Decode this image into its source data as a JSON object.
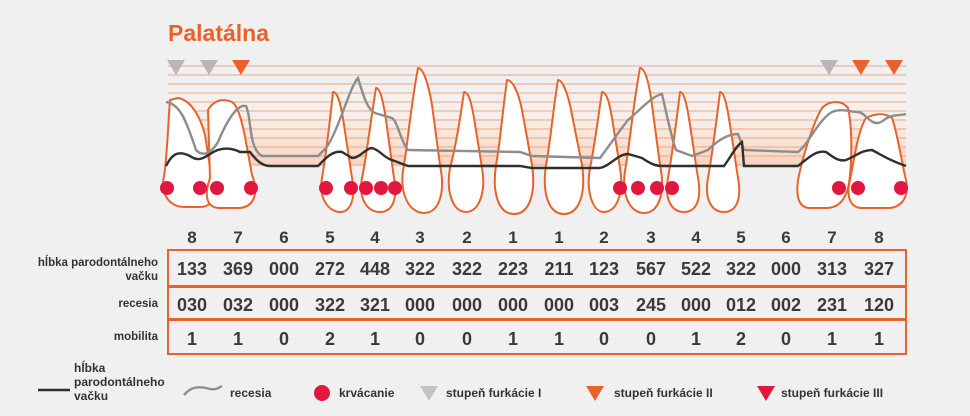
{
  "title": "Palatálna",
  "chart_data": {
    "type": "table",
    "teeth": [
      "8",
      "7",
      "6",
      "5",
      "4",
      "3",
      "2",
      "1",
      "1",
      "2",
      "3",
      "4",
      "5",
      "6",
      "7",
      "8"
    ],
    "rows": [
      {
        "label": "hĺbka parodontálneho vačku",
        "values": [
          "133",
          "369",
          "000",
          "272",
          "448",
          "322",
          "322",
          "223",
          "211",
          "123",
          "567",
          "522",
          "322",
          "000",
          "313",
          "327"
        ]
      },
      {
        "label": "recesia",
        "values": [
          "030",
          "032",
          "000",
          "322",
          "321",
          "000",
          "000",
          "000",
          "000",
          "003",
          "245",
          "000",
          "012",
          "002",
          "231",
          "120"
        ]
      },
      {
        "label": "mobilita",
        "values": [
          "1",
          "1",
          "0",
          "2",
          "1",
          "0",
          "0",
          "1",
          "1",
          "0",
          "0",
          "1",
          "2",
          "0",
          "1",
          "1"
        ]
      }
    ],
    "furcation": [
      {
        "tooth_index": 0,
        "grade": "I"
      },
      {
        "tooth_index": 1,
        "grade": "I"
      },
      {
        "tooth_index": 1,
        "grade": "II"
      },
      {
        "tooth_index": 14,
        "grade": "I"
      },
      {
        "tooth_index": 14,
        "grade": "II"
      },
      {
        "tooth_index": 15,
        "grade": "II"
      }
    ]
  },
  "legend": {
    "pocket_depth": "hĺbka parodontálneho vačku",
    "recession": "recesia",
    "bleeding": "krvácanie",
    "furcation_1": "stupeň furkácie I",
    "furcation_2": "stupeň furkácie II",
    "furcation_3": "stupeň furkácie III"
  },
  "colors": {
    "orange": "#e8632b",
    "red": "#e2173f",
    "gray": "#b7b7b7",
    "dark": "#2f2f2f",
    "recession_line": "#8d8d8d"
  }
}
